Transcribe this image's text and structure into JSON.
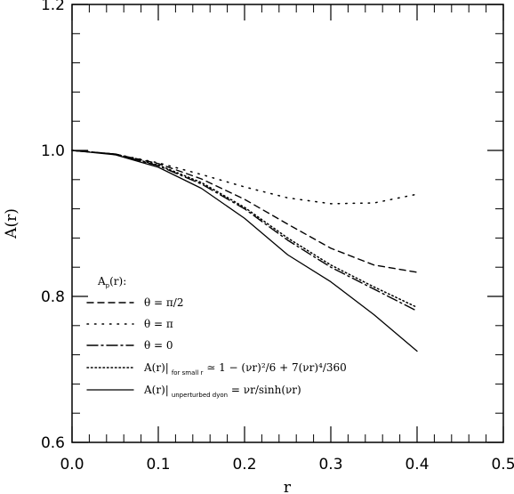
{
  "chart_data": {
    "type": "line",
    "xlabel": "r",
    "ylabel": "A(r)",
    "xlim": [
      0,
      0.5
    ],
    "ylim": [
      0.6,
      1.2
    ],
    "x_ticks": [
      "0.0",
      "0.1",
      "0.2",
      "0.3",
      "0.4",
      "0.5"
    ],
    "y_ticks": [
      "0.6",
      "0.8",
      "1.0",
      "1.2"
    ],
    "grid": false,
    "legend_placement": "bottom-left",
    "legend_title": {
      "main": "A",
      "sub": "p",
      "rest": "(r):"
    },
    "series": [
      {
        "style": "dashed",
        "legend": {
          "main": "θ = π/2",
          "sub": "",
          "rest": ""
        },
        "x": [
          0,
          0.05,
          0.1,
          0.15,
          0.2,
          0.25,
          0.3,
          0.35,
          0.4
        ],
        "y": [
          1.0,
          0.995,
          0.982,
          0.961,
          0.933,
          0.899,
          0.866,
          0.843,
          0.833
        ]
      },
      {
        "style": "dotted-sparse",
        "legend": {
          "main": "θ = π",
          "sub": "",
          "rest": ""
        },
        "x": [
          0,
          0.05,
          0.1,
          0.15,
          0.2,
          0.25,
          0.3,
          0.35,
          0.4
        ],
        "y": [
          1.0,
          0.995,
          0.983,
          0.967,
          0.95,
          0.935,
          0.927,
          0.928,
          0.94
        ]
      },
      {
        "style": "dash-dot",
        "legend": {
          "main": "θ = 0",
          "sub": "",
          "rest": ""
        },
        "x": [
          0,
          0.05,
          0.1,
          0.15,
          0.2,
          0.25,
          0.3,
          0.35,
          0.4
        ],
        "y": [
          1.0,
          0.995,
          0.979,
          0.954,
          0.92,
          0.877,
          0.84,
          0.81,
          0.78
        ]
      },
      {
        "style": "dotted",
        "legend": {
          "main": "A(r)|",
          "sub": "for small r",
          "rest": " ≃ 1 − (νr)²/6 + 7(νr)⁴/360"
        },
        "x": [
          0,
          0.05,
          0.1,
          0.15,
          0.2,
          0.25,
          0.3,
          0.35,
          0.4
        ],
        "y": [
          1.0,
          0.995,
          0.98,
          0.956,
          0.922,
          0.88,
          0.843,
          0.813,
          0.785
        ]
      },
      {
        "style": "solid",
        "legend": {
          "main": "A(r)|",
          "sub": "unperturbed dyon",
          "rest": " = νr/sinh(νr)"
        },
        "x": [
          0,
          0.05,
          0.1,
          0.15,
          0.2,
          0.25,
          0.3,
          0.35,
          0.4
        ],
        "y": [
          1.0,
          0.994,
          0.977,
          0.948,
          0.907,
          0.857,
          0.82,
          0.775,
          0.725
        ]
      }
    ]
  }
}
